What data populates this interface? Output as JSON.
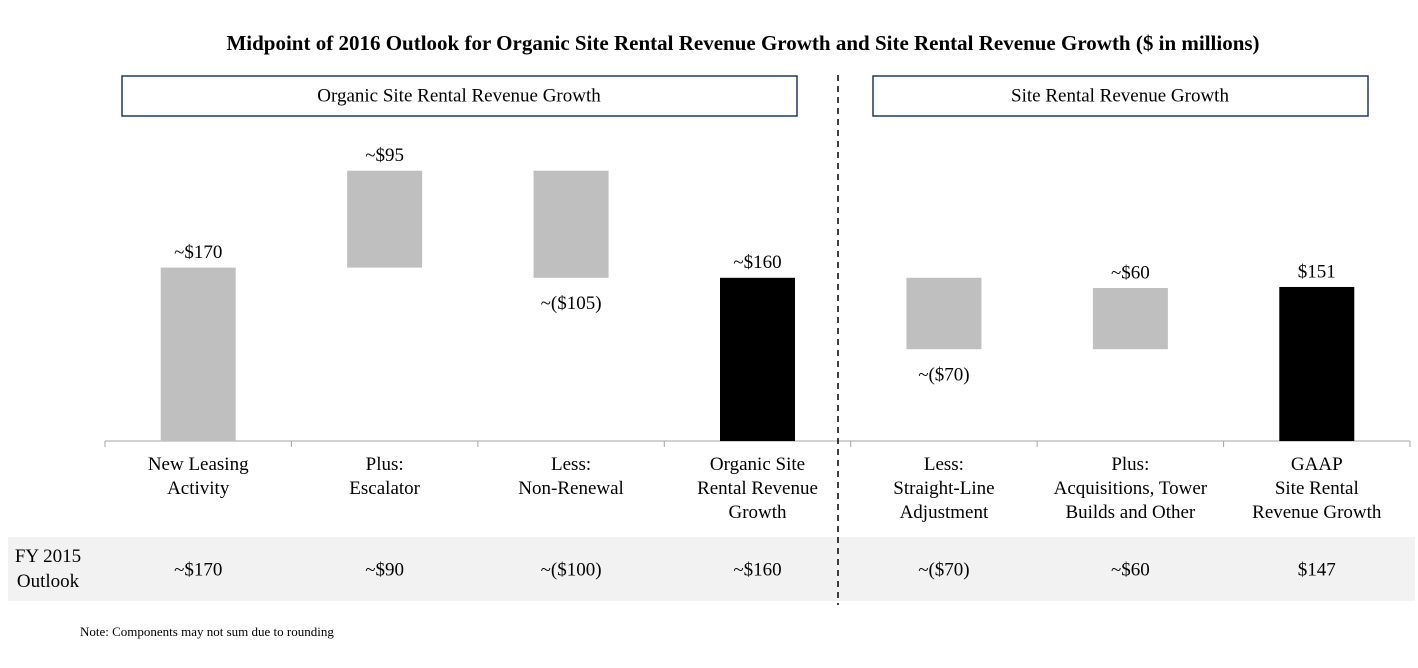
{
  "chart_data": {
    "type": "waterfall",
    "title": "Midpoint of 2016 Outlook for Organic Site Rental Revenue Growth and Site Rental Revenue Growth ($ in millions)",
    "sections": [
      "Organic Site Rental Revenue Growth",
      "Site Rental Revenue Growth"
    ],
    "categories": [
      "New Leasing\nActivity",
      "Plus:\nEscalator",
      "Less:\nNon-Renewal",
      "Organic Site\nRental Revenue\nGrowth",
      "Less:\nStraight-Line\nAdjustment",
      "Plus:\nAcquisitions, Tower\nBuilds and Other",
      "GAAP\nSite Rental\nRevenue Growth"
    ],
    "values": [
      170,
      95,
      -105,
      160,
      -70,
      60,
      151
    ],
    "value_labels": [
      "~$170",
      "~$95",
      "~($105)",
      "~$160",
      "~($70)",
      "~$60",
      "$151"
    ],
    "measures": [
      "relative",
      "relative",
      "relative",
      "total",
      "relative",
      "relative",
      "total"
    ],
    "colors": [
      "#bfbfbf",
      "#bfbfbf",
      "#bfbfbf",
      "#000000",
      "#bfbfbf",
      "#bfbfbf",
      "#000000"
    ],
    "ylim": [
      0,
      300
    ],
    "table": {
      "row_label": "FY 2015\nOutlook",
      "cells": [
        "~$170",
        "~$90",
        "~($100)",
        "~$160",
        "~($70)",
        "~$60",
        "$147"
      ]
    },
    "note": "Note: Components may not sum due to rounding"
  }
}
